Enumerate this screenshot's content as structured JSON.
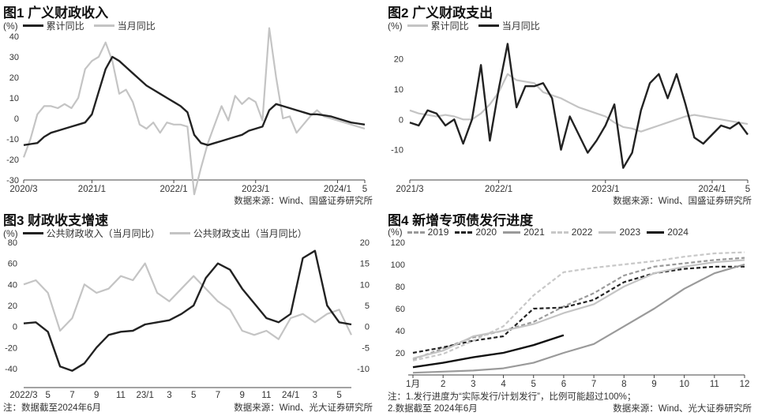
{
  "charts": [
    {
      "title": "图1 广义财政收入",
      "unit": "(%)",
      "legend": [
        "累计同比",
        "当月同比"
      ],
      "source": "数据来源：Wind、国盛证券研究所",
      "colors": {
        "cumulative": "#222222",
        "monthly": "#c4c4c4"
      }
    },
    {
      "title": "图2 广义财政支出",
      "unit": "(%)",
      "legend": [
        "累计同比",
        "当月同比"
      ],
      "source": "数据来源：Wind、国盛证券研究所",
      "colors": {
        "cumulative": "#c4c4c4",
        "monthly": "#222222"
      }
    },
    {
      "title": "图3 财政收支增速",
      "unit": "(%)",
      "legend": [
        "公共财政收入（当月同比）",
        "公共财政支出（当月同比）"
      ],
      "note": "注：数据截至2024年6月",
      "source": "数据来源：Wind、光大证券研究所",
      "colors": {
        "revenue": "#222222",
        "expenditure": "#c4c4c4"
      }
    },
    {
      "title": "图4 新增专项债发行进度",
      "unit": "(%)",
      "legend": [
        "2019",
        "2020",
        "2021",
        "2022",
        "2023",
        "2024"
      ],
      "note1": "注：1.发行进度为“实际发行/计划发行”，比例可能超过100%；",
      "note2": "2.数据截至 2024年6月",
      "source": "数据来源：Wind、光大证券研究所"
    }
  ],
  "chart_data": [
    {
      "type": "line",
      "title": "图1 广义财政收入",
      "ylim": [
        -30,
        40
      ],
      "yticks": [
        40,
        30,
        20,
        10,
        0,
        -10,
        -20,
        -30
      ],
      "xticks": [
        "2020/3",
        "2021/1",
        "2022/1",
        "2023/1",
        "2024/1",
        "5"
      ],
      "xtick_index": [
        0,
        10,
        22,
        34,
        46,
        50
      ],
      "n": 51,
      "series": [
        {
          "name": "累计同比",
          "values": [
            -13,
            -12.5,
            -12,
            -9,
            -7,
            -6,
            -5,
            -4,
            -3,
            -2,
            2,
            13,
            24,
            30,
            28,
            25,
            22,
            19,
            16,
            14,
            12,
            10,
            8,
            6,
            3,
            -8,
            -12,
            -13,
            -12,
            -11,
            -10,
            -9,
            -8,
            -6,
            -5,
            -4,
            4,
            7,
            6,
            5,
            4,
            3,
            2,
            2,
            1.5,
            1,
            0,
            -1,
            -2,
            -2.5,
            -3
          ]
        },
        {
          "name": "当月同比",
          "values": [
            -19,
            -10,
            2,
            6,
            6,
            5,
            7,
            5,
            10,
            24,
            28,
            30,
            37,
            28,
            12,
            14,
            8,
            -3,
            -5,
            -2,
            -7,
            -2,
            -3,
            -3,
            -4,
            -37,
            -24,
            -12,
            -3,
            6,
            -1,
            11,
            7,
            10,
            8,
            -1,
            44,
            20,
            0,
            1,
            -7,
            -3,
            1,
            4,
            1,
            0,
            -1,
            -2,
            -3,
            -4,
            -5
          ]
        }
      ]
    },
    {
      "type": "line",
      "title": "图2 广义财政支出",
      "ylim": [
        -20,
        28
      ],
      "yticks": [
        20,
        10,
        0,
        -10
      ],
      "xticks": [
        "2021/3",
        "2022/1",
        "2023/1",
        "2024/1",
        "5"
      ],
      "xtick_index": [
        0,
        10,
        22,
        34,
        38
      ],
      "n": 39,
      "series": [
        {
          "name": "累计同比",
          "values": [
            3,
            2,
            1.5,
            1,
            1.5,
            1,
            0,
            0,
            2,
            5,
            9,
            15,
            13,
            12.5,
            12,
            9,
            8,
            7,
            5.5,
            4,
            3,
            2,
            1,
            -1,
            -2.5,
            -3,
            -4,
            -3,
            -2,
            -1,
            0,
            1,
            1.5,
            1,
            0.5,
            0,
            -0.5,
            -1,
            -1.5
          ]
        },
        {
          "name": "当月同比",
          "values": [
            -1,
            -2,
            3,
            2,
            -2,
            0,
            -8,
            0,
            18,
            -7,
            10,
            25,
            4,
            11,
            11,
            12,
            7,
            -10,
            1,
            -5,
            -11,
            -7,
            -2,
            5,
            -16,
            -11,
            3,
            12,
            15,
            7,
            15,
            5,
            -6,
            -8,
            -5,
            -2,
            -3,
            -1,
            -5
          ]
        }
      ]
    },
    {
      "type": "line",
      "title": "图3 财政收支增速",
      "ylim_left": [
        -40,
        80
      ],
      "ylim_right": [
        -10,
        20
      ],
      "yticks_left": [
        80,
        60,
        40,
        20,
        0,
        -20,
        -40
      ],
      "yticks_right": [
        20,
        15,
        10,
        5,
        0,
        -5,
        -10
      ],
      "xticks": [
        "2022/3",
        "5",
        "7",
        "9",
        "11",
        "23/1",
        "3",
        "5",
        "7",
        "9",
        "11",
        "24/1",
        "3",
        "5"
      ],
      "xtick_index": [
        0,
        2,
        4,
        6,
        8,
        10,
        12,
        14,
        16,
        18,
        20,
        22,
        24,
        26
      ],
      "n": 28,
      "series": [
        {
          "name": "公共财政收入（当月同比）",
          "axis": "left",
          "values": [
            3,
            4,
            -5,
            -38,
            -42,
            -35,
            -20,
            -8,
            -5,
            -4,
            2,
            4,
            6,
            12,
            20,
            46,
            60,
            54,
            36,
            22,
            8,
            4,
            12,
            65,
            72,
            20,
            4,
            2
          ]
        },
        {
          "name": "公共财政支出（当月同比）",
          "axis": "right",
          "values": [
            10,
            11,
            8,
            -1,
            2,
            10,
            8,
            9,
            12,
            11,
            15,
            8,
            6,
            9,
            12,
            9,
            6,
            4,
            -1,
            -2,
            -1,
            -3,
            2,
            3,
            1,
            3,
            4,
            -2
          ]
        }
      ]
    },
    {
      "type": "line",
      "title": "图4 新增专项债发行进度",
      "ylim": [
        0,
        120
      ],
      "yticks": [
        120,
        100,
        80,
        60,
        40,
        20
      ],
      "xticks": [
        "1月",
        "2",
        "3",
        "4",
        "5",
        "6",
        "7",
        "8",
        "9",
        "10",
        "11",
        "12"
      ],
      "series": [
        {
          "name": "2019",
          "style": "dash",
          "color": "#9a9a9a",
          "values": [
            14,
            24,
            34,
            40,
            48,
            62,
            74,
            90,
            98,
            101,
            104,
            106
          ]
        },
        {
          "name": "2020",
          "style": "dash",
          "color": "#222222",
          "values": [
            20,
            25,
            31,
            35,
            60,
            61,
            68,
            84,
            92,
            96,
            98,
            98
          ]
        },
        {
          "name": "2021",
          "style": "solid",
          "color": "#9a9a9a",
          "values": [
            2,
            3,
            4,
            6,
            11,
            20,
            28,
            44,
            60,
            78,
            92,
            100
          ]
        },
        {
          "name": "2022",
          "style": "dash",
          "color": "#c8c8c8",
          "values": [
            13,
            19,
            31,
            44,
            72,
            93,
            97,
            100,
            103,
            107,
            110,
            111
          ]
        },
        {
          "name": "2023",
          "style": "solid",
          "color": "#c4c4c4",
          "values": [
            15,
            22,
            35,
            40,
            46,
            56,
            64,
            80,
            92,
            98,
            102,
            104
          ]
        },
        {
          "name": "2024",
          "style": "solid",
          "color": "#111111",
          "values": [
            7,
            11,
            16,
            20,
            27,
            36,
            null,
            null,
            null,
            null,
            null,
            null
          ]
        }
      ]
    }
  ]
}
